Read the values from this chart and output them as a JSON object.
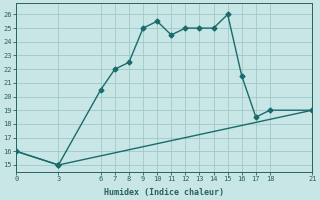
{
  "xlabel": "Humidex (Indice chaleur)",
  "background_color": "#c8e6e6",
  "grid_color": "#a0c8c8",
  "line_color": "#1a6b6b",
  "line1_x": [
    0,
    3,
    6,
    7,
    8,
    9,
    10,
    11,
    12,
    13,
    14,
    15,
    16,
    17,
    18,
    21
  ],
  "line1_y": [
    16,
    15,
    20.5,
    22,
    22.5,
    25,
    25.5,
    24.5,
    25,
    25,
    25,
    26,
    21.5,
    18.5,
    19,
    19
  ],
  "line2_x": [
    0,
    3,
    21
  ],
  "line2_y": [
    16,
    15,
    19
  ],
  "xticks": [
    0,
    3,
    6,
    7,
    8,
    9,
    10,
    11,
    12,
    13,
    14,
    15,
    16,
    17,
    18,
    21
  ],
  "yticks": [
    15,
    16,
    17,
    18,
    19,
    20,
    21,
    22,
    23,
    24,
    25,
    26
  ],
  "xlim": [
    0,
    21
  ],
  "ylim": [
    14.5,
    26.8
  ],
  "marker": "D",
  "markersize": 2.5,
  "linewidth": 1.0,
  "xlabel_fontsize": 6,
  "tick_fontsize": 5,
  "tick_color": "#2a6060",
  "spine_color": "#2a6060"
}
